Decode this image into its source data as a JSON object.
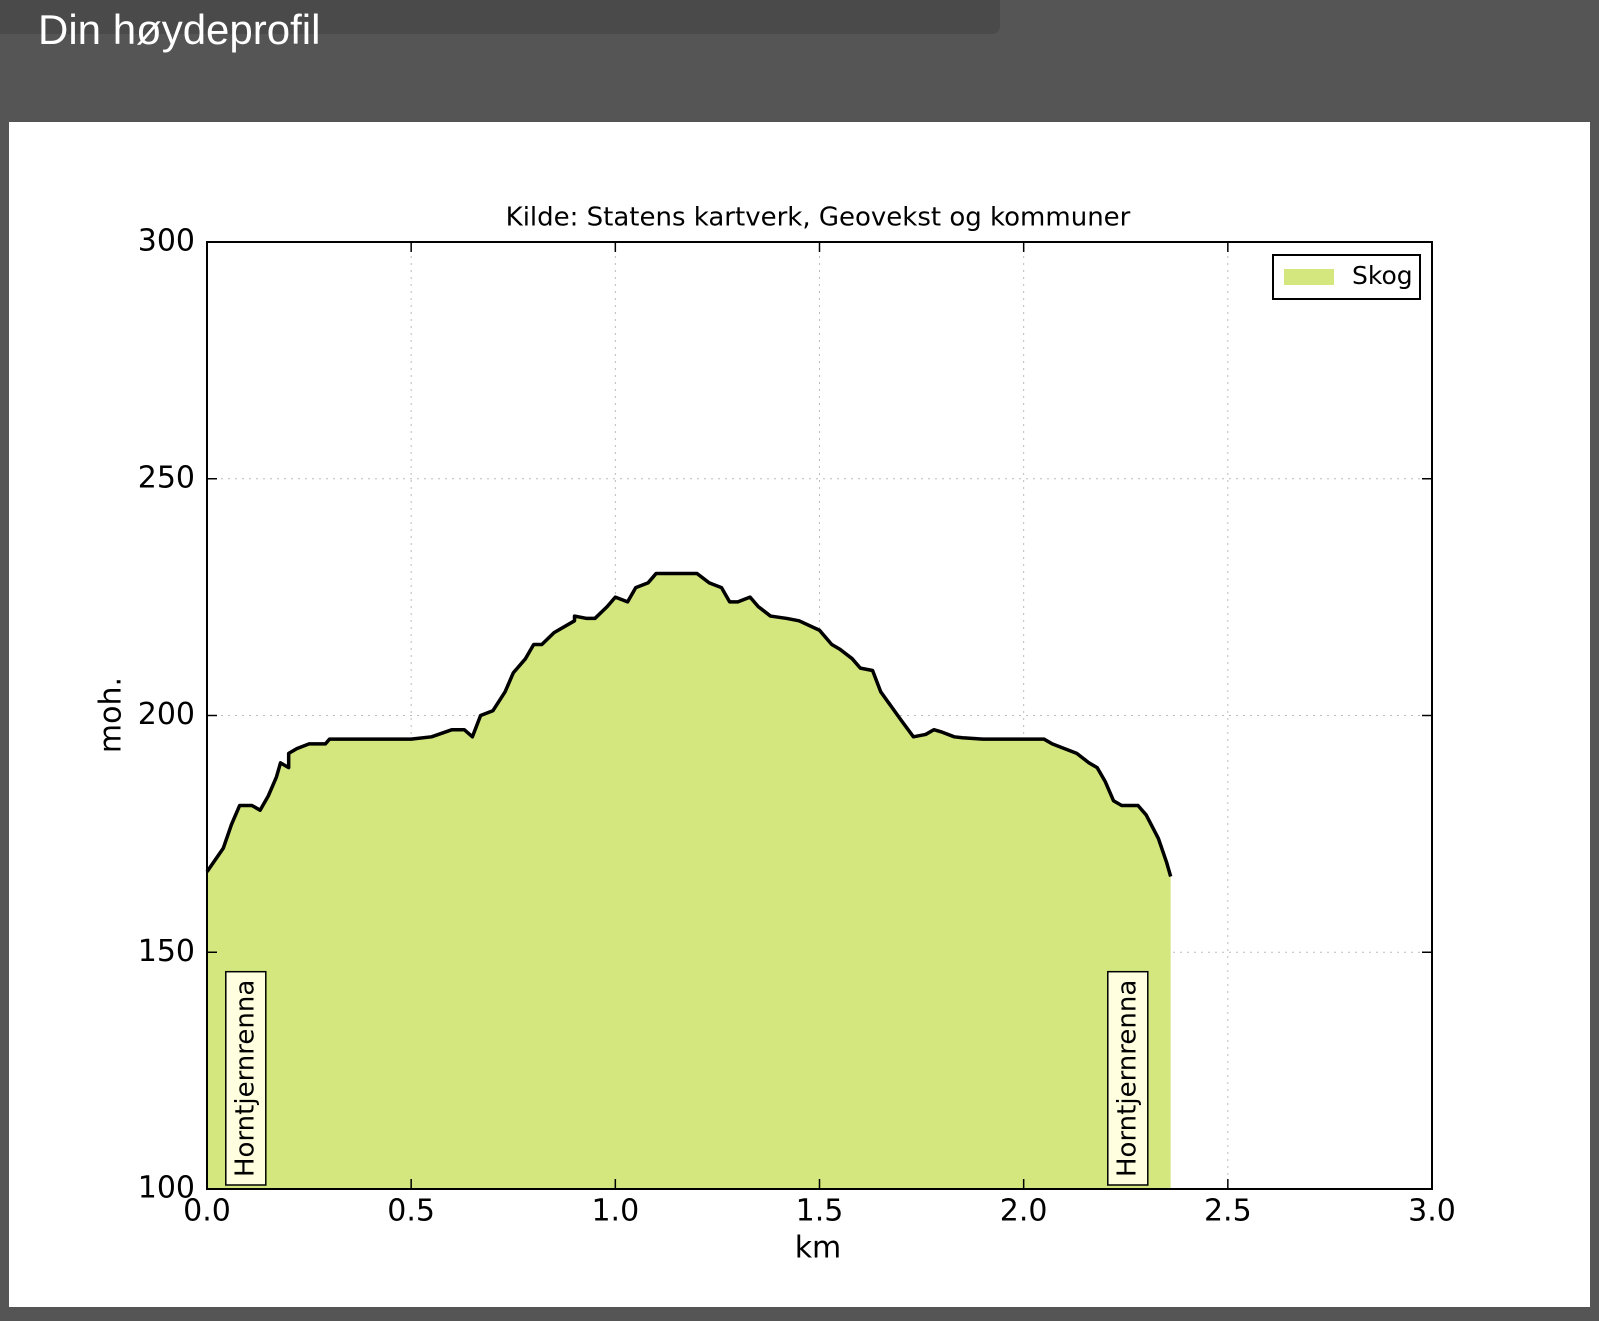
{
  "header": {
    "title": "Din høydeprofil"
  },
  "chart_data": {
    "type": "area",
    "title": "Kilde: Statens kartverk, Geovekst og kommuner",
    "x_label": "km",
    "y_label": "moh.",
    "x": [
      0.0,
      0.04,
      0.06,
      0.08,
      0.11,
      0.13,
      0.15,
      0.17,
      0.18,
      0.2,
      0.2,
      0.22,
      0.25,
      0.29,
      0.3,
      0.5,
      0.55,
      0.6,
      0.63,
      0.65,
      0.67,
      0.7,
      0.73,
      0.75,
      0.78,
      0.8,
      0.82,
      0.85,
      0.9,
      0.9,
      0.93,
      0.95,
      0.98,
      1.0,
      1.03,
      1.05,
      1.08,
      1.1,
      1.2,
      1.23,
      1.26,
      1.28,
      1.3,
      1.33,
      1.35,
      1.38,
      1.42,
      1.45,
      1.5,
      1.53,
      1.55,
      1.58,
      1.6,
      1.63,
      1.65,
      1.7,
      1.73,
      1.76,
      1.78,
      1.8,
      1.83,
      1.85,
      1.9,
      2.05,
      2.07,
      2.1,
      2.13,
      2.16,
      2.18,
      2.2,
      2.22,
      2.24,
      2.28,
      2.3,
      2.33,
      2.35,
      2.36
    ],
    "series": [
      {
        "name": "Skog",
        "color": "#d4e67e",
        "line_color": "#000000",
        "values": [
          167,
          172,
          177,
          181,
          181,
          180,
          183,
          187,
          190,
          189,
          192,
          193,
          194,
          194,
          195,
          195,
          195.5,
          197,
          197,
          195.5,
          200,
          201,
          205,
          209,
          212,
          215,
          215,
          217.5,
          220,
          221,
          220.5,
          220.5,
          223,
          225,
          224,
          227,
          228,
          230,
          230,
          228,
          227,
          224,
          224,
          225,
          223,
          221,
          220.5,
          220,
          218,
          215,
          214,
          212,
          210,
          209.5,
          205,
          199,
          195.5,
          196,
          197,
          196.5,
          195.5,
          195.3,
          195,
          195,
          194,
          193,
          192,
          190,
          189,
          186,
          182,
          181,
          181,
          179,
          174,
          169,
          166
        ]
      }
    ],
    "annotations": [
      {
        "text": "Horntjernrenna",
        "x": 0.095
      },
      {
        "text": "Horntjernrenna",
        "x": 2.255
      }
    ],
    "xlim": [
      0,
      3
    ],
    "ylim": [
      100,
      300
    ],
    "xticks": [
      {
        "value": 0,
        "label": "0.0"
      },
      0.5,
      {
        "value": 1,
        "label": "1.0"
      },
      1.5,
      {
        "value": 2,
        "label": "2.0"
      },
      2.5,
      {
        "value": 3,
        "label": "3.0"
      }
    ],
    "yticks": [
      100,
      150,
      200,
      250,
      300
    ],
    "grid": true,
    "legend": "upper right"
  }
}
